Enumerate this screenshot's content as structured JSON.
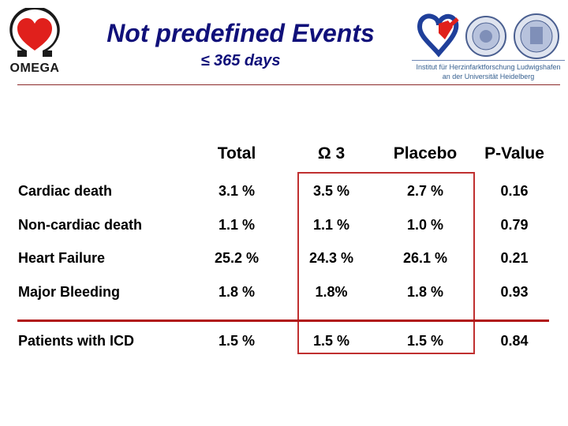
{
  "header": {
    "title": "Not predefined Events",
    "subtitle": "≤ 365 days",
    "logo_left": {
      "brand": "OMEGA",
      "icon": "omega-heart-logo"
    },
    "logo_right": {
      "icons": [
        "heart-institute-logo",
        "university-seal-1",
        "university-seal-2"
      ],
      "caption_line1": "Institut für Herzinfarktforschung Ludwigshafen",
      "caption_line2": "an der Universität Heidelberg"
    }
  },
  "table": {
    "columns": [
      "Total",
      "Ω 3",
      "Placebo",
      "P-Value"
    ],
    "rows": [
      {
        "label": "Cardiac death",
        "values": [
          "3.1 %",
          "3.5 %",
          "2.7 %",
          "0.16"
        ]
      },
      {
        "label": "Non-cardiac death",
        "values": [
          "1.1 %",
          "1.1 %",
          "1.0 %",
          "0.79"
        ]
      },
      {
        "label": "Heart Failure",
        "values": [
          "25.2 %",
          "24.3 %",
          "26.1 %",
          "0.21"
        ]
      },
      {
        "label": "Major Bleeding",
        "values": [
          "1.8 %",
          "1.8%",
          "1.8 %",
          "0.93"
        ]
      },
      {
        "label": "Patients with ICD",
        "values": [
          "1.5 %",
          "1.5 %",
          "1.5 %",
          "0.84"
        ]
      }
    ]
  },
  "colors": {
    "title": "#10107a",
    "highlight": "#c03030",
    "rule": "#b01414",
    "logo_red": "#e0201c"
  }
}
